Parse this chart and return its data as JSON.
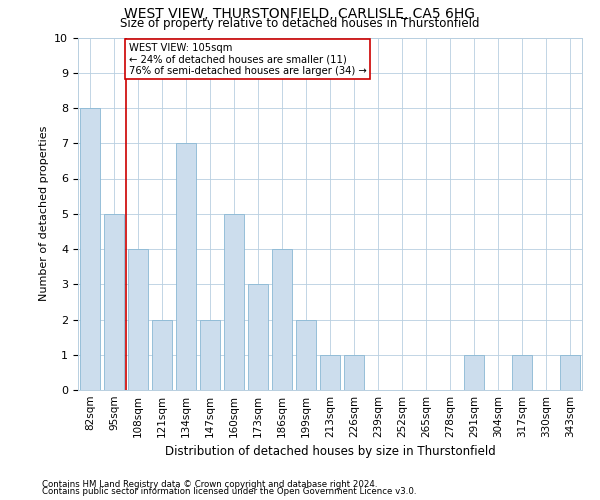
{
  "title": "WEST VIEW, THURSTONFIELD, CARLISLE, CA5 6HG",
  "subtitle": "Size of property relative to detached houses in Thurstonfield",
  "xlabel": "Distribution of detached houses by size in Thurstonfield",
  "ylabel": "Number of detached properties",
  "footnote1": "Contains HM Land Registry data © Crown copyright and database right 2024.",
  "footnote2": "Contains public sector information licensed under the Open Government Licence v3.0.",
  "categories": [
    "82sqm",
    "95sqm",
    "108sqm",
    "121sqm",
    "134sqm",
    "147sqm",
    "160sqm",
    "173sqm",
    "186sqm",
    "199sqm",
    "213sqm",
    "226sqm",
    "239sqm",
    "252sqm",
    "265sqm",
    "278sqm",
    "291sqm",
    "304sqm",
    "317sqm",
    "330sqm",
    "343sqm"
  ],
  "values": [
    8,
    5,
    4,
    2,
    7,
    2,
    5,
    3,
    4,
    2,
    1,
    1,
    0,
    0,
    0,
    0,
    1,
    0,
    1,
    0,
    1
  ],
  "bar_color": "#ccdded",
  "bar_edge_color": "#8ab8d4",
  "highlight_index": 2,
  "highlight_line_color": "#cc0000",
  "ylim": [
    0,
    10
  ],
  "yticks": [
    0,
    1,
    2,
    3,
    4,
    5,
    6,
    7,
    8,
    9,
    10
  ],
  "annotation_text": "WEST VIEW: 105sqm\n← 24% of detached houses are smaller (11)\n76% of semi-detached houses are larger (34) →",
  "annotation_box_color": "#cc0000",
  "bg_color": "#ffffff",
  "grid_color": "#b8cfe0"
}
